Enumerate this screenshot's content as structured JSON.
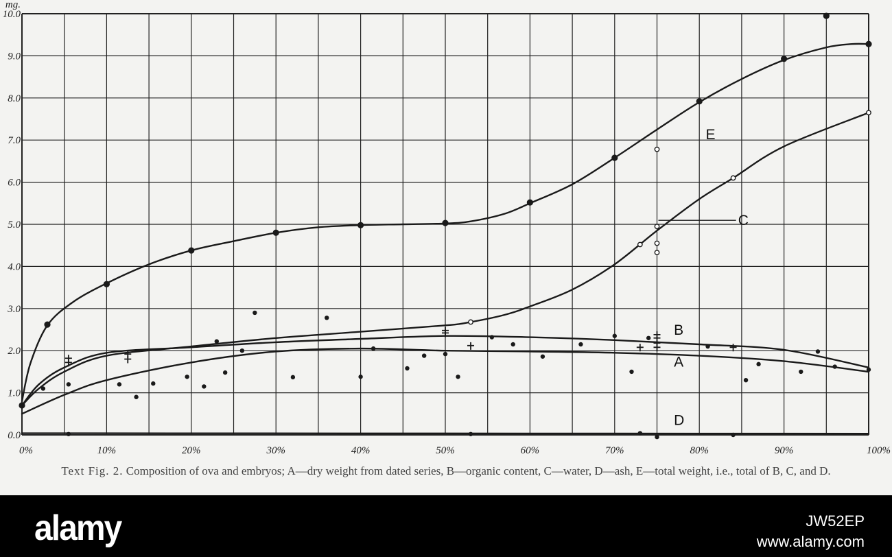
{
  "chart_data": {
    "type": "scatter",
    "title": "",
    "xlabel": "",
    "ylabel": "",
    "y_unit_label": "mg.",
    "xlim": [
      0,
      100
    ],
    "ylim": [
      0,
      10
    ],
    "grid": true,
    "x_ticks": [
      "0%",
      "10%",
      "20%",
      "30%",
      "40%",
      "50%",
      "60%",
      "70%",
      "80%",
      "90%",
      "100%"
    ],
    "y_ticks": [
      "0.0",
      "1.0",
      "2.0",
      "3.0",
      "4.0",
      "5.0",
      "6.0",
      "7.0",
      "8.0",
      "9.0",
      "10.0"
    ],
    "series": [
      {
        "name": "E",
        "curve": [
          [
            0,
            0.8
          ],
          [
            1,
            1.7
          ],
          [
            3,
            2.6
          ],
          [
            6,
            3.15
          ],
          [
            10,
            3.6
          ],
          [
            15,
            4.05
          ],
          [
            20,
            4.38
          ],
          [
            25,
            4.6
          ],
          [
            30,
            4.8
          ],
          [
            35,
            4.93
          ],
          [
            40,
            4.98
          ],
          [
            45,
            5.0
          ],
          [
            50,
            5.02
          ],
          [
            53,
            5.07
          ],
          [
            57,
            5.25
          ],
          [
            60,
            5.5
          ],
          [
            65,
            5.95
          ],
          [
            70,
            6.58
          ],
          [
            75,
            7.25
          ],
          [
            80,
            7.9
          ],
          [
            85,
            8.45
          ],
          [
            90,
            8.9
          ],
          [
            95,
            9.2
          ],
          [
            98,
            9.28
          ],
          [
            100,
            9.28
          ]
        ],
        "points": [
          [
            0,
            0.7
          ],
          [
            3,
            2.62
          ],
          [
            10,
            3.58
          ],
          [
            20,
            4.38
          ],
          [
            30,
            4.8
          ],
          [
            40,
            4.98
          ],
          [
            50,
            5.03
          ],
          [
            60,
            5.52
          ],
          [
            70,
            6.58
          ],
          [
            80,
            7.92
          ],
          [
            90,
            8.93
          ],
          [
            95,
            9.95
          ],
          [
            100,
            9.28
          ]
        ]
      },
      {
        "name": "C",
        "curve": [
          [
            0,
            0.7
          ],
          [
            2,
            1.1
          ],
          [
            5,
            1.5
          ],
          [
            10,
            1.88
          ],
          [
            20,
            2.1
          ],
          [
            30,
            2.3
          ],
          [
            40,
            2.45
          ],
          [
            50,
            2.6
          ],
          [
            53,
            2.68
          ],
          [
            57,
            2.85
          ],
          [
            60,
            3.05
          ],
          [
            65,
            3.45
          ],
          [
            70,
            4.05
          ],
          [
            75,
            4.85
          ],
          [
            80,
            5.6
          ],
          [
            84,
            6.1
          ],
          [
            90,
            6.85
          ],
          [
            100,
            7.65
          ]
        ],
        "points": [
          [
            53,
            2.68
          ],
          [
            73,
            4.52
          ],
          [
            75,
            4.95
          ],
          [
            75,
            4.55
          ],
          [
            75,
            4.33
          ],
          [
            75,
            6.78
          ],
          [
            84,
            6.1
          ],
          [
            100,
            7.65
          ]
        ]
      },
      {
        "name": "B",
        "curve": [
          [
            0,
            0.7
          ],
          [
            2,
            1.2
          ],
          [
            5,
            1.6
          ],
          [
            10,
            1.95
          ],
          [
            20,
            2.08
          ],
          [
            30,
            2.2
          ],
          [
            40,
            2.28
          ],
          [
            50,
            2.35
          ],
          [
            60,
            2.32
          ],
          [
            70,
            2.25
          ],
          [
            80,
            2.15
          ],
          [
            90,
            2.02
          ],
          [
            100,
            1.6
          ]
        ],
        "points": [
          [
            5.5,
            1.82
          ],
          [
            5.5,
            1.72
          ],
          [
            12.5,
            1.92
          ],
          [
            12.5,
            1.8
          ],
          [
            50,
            2.48
          ],
          [
            50,
            2.42
          ],
          [
            53,
            2.12
          ],
          [
            73,
            2.08
          ],
          [
            75,
            2.38
          ],
          [
            75,
            2.3
          ],
          [
            75,
            2.18
          ],
          [
            75,
            2.08
          ],
          [
            84,
            2.08
          ]
        ]
      },
      {
        "name": "A",
        "curve": [
          [
            0,
            0.5
          ],
          [
            5,
            0.95
          ],
          [
            10,
            1.3
          ],
          [
            20,
            1.72
          ],
          [
            30,
            1.98
          ],
          [
            40,
            2.05
          ],
          [
            50,
            2.0
          ],
          [
            60,
            1.98
          ],
          [
            70,
            1.95
          ],
          [
            80,
            1.88
          ],
          [
            90,
            1.75
          ],
          [
            100,
            1.5
          ]
        ],
        "points": [
          [
            2.5,
            1.1
          ],
          [
            5.5,
            1.2
          ],
          [
            11.5,
            1.2
          ],
          [
            13.5,
            0.9
          ],
          [
            15.5,
            1.22
          ],
          [
            19.5,
            1.38
          ],
          [
            21.5,
            1.15
          ],
          [
            23,
            2.22
          ],
          [
            24,
            1.48
          ],
          [
            26,
            2.0
          ],
          [
            27.5,
            2.9
          ],
          [
            32,
            1.37
          ],
          [
            36,
            2.78
          ],
          [
            40,
            1.38
          ],
          [
            41.5,
            2.05
          ],
          [
            45.5,
            1.58
          ],
          [
            47.5,
            1.88
          ],
          [
            50,
            1.92
          ],
          [
            51.5,
            1.38
          ],
          [
            55.5,
            2.32
          ],
          [
            58,
            2.15
          ],
          [
            61.5,
            1.86
          ],
          [
            66,
            2.15
          ],
          [
            70,
            2.35
          ],
          [
            72,
            1.5
          ],
          [
            74,
            2.3
          ],
          [
            81,
            2.1
          ],
          [
            85.5,
            1.3
          ],
          [
            87,
            1.68
          ],
          [
            92,
            1.5
          ],
          [
            94,
            1.98
          ],
          [
            96,
            1.62
          ],
          [
            100,
            1.55
          ]
        ]
      },
      {
        "name": "D",
        "curve": [
          [
            0,
            0.04
          ],
          [
            100,
            0.03
          ]
        ],
        "points": [
          [
            5.5,
            0.02
          ],
          [
            53,
            0.02
          ],
          [
            73,
            0.04
          ],
          [
            75,
            -0.05
          ],
          [
            84,
            0.0
          ]
        ]
      }
    ]
  },
  "caption": {
    "prefix": "Text Fig. 2.",
    "text": "Composition of ova and embryos; A—dry weight from dated series, B—organic content, C—water, D—ash, E—total weight, i.e., total of B, C, and D."
  },
  "watermark": {
    "logo": "alamy",
    "image_id": "JW52EP",
    "site": "www.alamy.com"
  }
}
